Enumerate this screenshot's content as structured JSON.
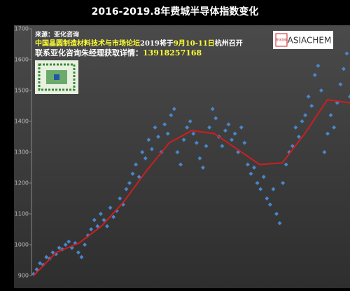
{
  "chart_data": {
    "type": "scatter",
    "title": "2016-2019.8年费城半导体指数变化",
    "ylim": [
      900,
      1700
    ],
    "yticks": [
      900,
      1000,
      1100,
      1200,
      1300,
      1400,
      1500,
      1600,
      1700
    ],
    "annotations": [
      [
        {
          "text": "来源：亚化咨询",
          "color": "#ffffff"
        }
      ],
      [
        {
          "text": "中国晶圆制造材料技术与市场论坛",
          "color": "#ffff33"
        },
        {
          "text": "2019将于",
          "color": "#ffffff"
        },
        {
          "text": "9月10-11日",
          "color": "#ffff33"
        },
        {
          "text": "杭州召开",
          "color": "#ffffff"
        }
      ],
      [
        {
          "text": "联系亚化咨询朱经理获取详情：",
          "color": "#ffffff"
        },
        {
          "text": "13918257168",
          "color": "#ffff33"
        }
      ]
    ],
    "logo": {
      "text": "ASIACHEM",
      "small": "亚化咨询"
    },
    "series": [
      {
        "type": "scatter",
        "color": "#4a86c8",
        "values": [
          905,
          920,
          940,
          935,
          960,
          955,
          975,
          970,
          990,
          985,
          1000,
          1010,
          990,
          1005,
          975,
          960,
          1000,
          1030,
          1050,
          1080,
          1060,
          1100,
          1080,
          1060,
          1120,
          1090,
          1110,
          1150,
          1130,
          1180,
          1200,
          1230,
          1260,
          1220,
          1300,
          1280,
          1340,
          1310,
          1380,
          1350,
          1300,
          1390,
          1360,
          1420,
          1440,
          1300,
          1260,
          1340,
          1380,
          1400,
          1360,
          1330,
          1280,
          1250,
          1320,
          1380,
          1440,
          1410,
          1350,
          1320,
          1370,
          1390,
          1340,
          1360,
          1300,
          1380,
          1330,
          1260,
          1230,
          1250,
          1200,
          1180,
          1220,
          1150,
          1130,
          1180,
          1100,
          1070,
          1200,
          1260,
          1300,
          1320,
          1380,
          1350,
          1400,
          1420,
          1480,
          1450,
          1550,
          1580,
          1500,
          1300,
          1360,
          1420,
          1380,
          1460,
          1520,
          1570,
          1620,
          1480
        ]
      },
      {
        "type": "line",
        "color": "#cc1f1f",
        "values": [
          900,
          975,
          1005,
          1060,
          1140,
          1240,
          1330,
          1370,
          1360,
          1310,
          1260,
          1265,
          1360,
          1470,
          1460
        ]
      }
    ]
  }
}
